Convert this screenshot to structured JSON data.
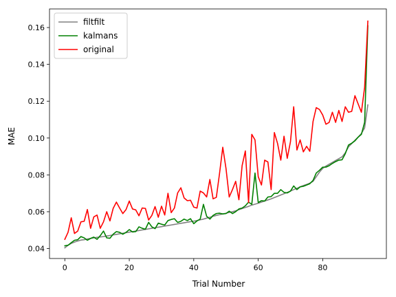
{
  "chart_data": {
    "type": "line",
    "xlabel": "Trial Number",
    "ylabel": "MAE",
    "xlim": [
      -4.75,
      99.75
    ],
    "ylim": [
      0.0346,
      0.1701
    ],
    "xticks": [
      0,
      20,
      40,
      60,
      80
    ],
    "yticks": [
      0.04,
      0.06,
      0.08,
      0.1,
      0.12,
      0.14,
      0.16
    ],
    "ytick_labels": [
      "0.04",
      "0.06",
      "0.08",
      "0.10",
      "0.12",
      "0.14",
      "0.16"
    ],
    "grid": false,
    "legend_position": "top-left",
    "series": [
      {
        "name": "filtfilt",
        "color": "#808080",
        "values": [
          0.0404,
          0.0418,
          0.0428,
          0.0435,
          0.0441,
          0.0446,
          0.0448,
          0.0452,
          0.0455,
          0.0458,
          0.0461,
          0.0463,
          0.0465,
          0.0468,
          0.0471,
          0.0474,
          0.0477,
          0.048,
          0.0483,
          0.0486,
          0.0489,
          0.0492,
          0.0495,
          0.0498,
          0.0501,
          0.0504,
          0.0507,
          0.051,
          0.0513,
          0.0516,
          0.0519,
          0.0522,
          0.0525,
          0.0528,
          0.0531,
          0.0534,
          0.0537,
          0.054,
          0.0543,
          0.0546,
          0.0549,
          0.0552,
          0.0556,
          0.056,
          0.0565,
          0.057,
          0.0575,
          0.058,
          0.0584,
          0.0588,
          0.0592,
          0.0596,
          0.06,
          0.0605,
          0.0611,
          0.0617,
          0.0623,
          0.0629,
          0.0636,
          0.0641,
          0.0646,
          0.0652,
          0.0658,
          0.0664,
          0.067,
          0.0677,
          0.0684,
          0.0691,
          0.0698,
          0.0705,
          0.0712,
          0.072,
          0.0727,
          0.0735,
          0.0742,
          0.0748,
          0.0755,
          0.0765,
          0.079,
          0.0815,
          0.0835,
          0.0848,
          0.0858,
          0.0868,
          0.0878,
          0.0888,
          0.0898,
          0.092,
          0.0952,
          0.097,
          0.0988,
          0.1005,
          0.1025,
          0.1055,
          0.118
        ]
      },
      {
        "name": "kalmans",
        "color": "#008000",
        "values": [
          0.0415,
          0.0418,
          0.0432,
          0.0445,
          0.0448,
          0.0465,
          0.0458,
          0.0445,
          0.0455,
          0.0462,
          0.045,
          0.047,
          0.0495,
          0.0458,
          0.0456,
          0.0478,
          0.0492,
          0.0488,
          0.0478,
          0.0488,
          0.0503,
          0.049,
          0.0492,
          0.0518,
          0.051,
          0.0505,
          0.0542,
          0.0518,
          0.0508,
          0.0538,
          0.0532,
          0.0528,
          0.0552,
          0.0558,
          0.0562,
          0.0542,
          0.0548,
          0.056,
          0.0552,
          0.0562,
          0.0535,
          0.055,
          0.056,
          0.064,
          0.0575,
          0.056,
          0.058,
          0.059,
          0.0592,
          0.0588,
          0.059,
          0.0603,
          0.059,
          0.06,
          0.0615,
          0.062,
          0.0632,
          0.0652,
          0.064,
          0.081,
          0.065,
          0.066,
          0.0658,
          0.068,
          0.0682,
          0.07,
          0.07,
          0.072,
          0.0705,
          0.0702,
          0.0712,
          0.074,
          0.072,
          0.0735,
          0.0738,
          0.0745,
          0.0752,
          0.077,
          0.081,
          0.0825,
          0.0842,
          0.0842,
          0.085,
          0.0862,
          0.0872,
          0.088,
          0.0882,
          0.0915,
          0.0962,
          0.0972,
          0.0985,
          0.1005,
          0.102,
          0.1085,
          0.161
        ]
      },
      {
        "name": "original",
        "color": "#ff0000",
        "values": [
          0.045,
          0.0488,
          0.0567,
          0.0482,
          0.0495,
          0.0545,
          0.0548,
          0.0612,
          0.051,
          0.0572,
          0.0582,
          0.051,
          0.0545,
          0.06,
          0.055,
          0.0618,
          0.0652,
          0.062,
          0.059,
          0.0612,
          0.0658,
          0.0615,
          0.061,
          0.0578,
          0.062,
          0.0618,
          0.0555,
          0.058,
          0.0628,
          0.057,
          0.063,
          0.0582,
          0.07,
          0.0595,
          0.062,
          0.0702,
          0.073,
          0.0675,
          0.066,
          0.0662,
          0.0625,
          0.062,
          0.0712,
          0.0702,
          0.068,
          0.0775,
          0.067,
          0.0678,
          0.0808,
          0.095,
          0.0835,
          0.068,
          0.072,
          0.0765,
          0.0665,
          0.085,
          0.093,
          0.065,
          0.102,
          0.099,
          0.079,
          0.0745,
          0.088,
          0.087,
          0.072,
          0.103,
          0.097,
          0.088,
          0.101,
          0.089,
          0.098,
          0.117,
          0.0935,
          0.099,
          0.0925,
          0.0955,
          0.0928,
          0.109,
          0.1165,
          0.1155,
          0.1125,
          0.1075,
          0.1085,
          0.114,
          0.1085,
          0.115,
          0.109,
          0.117,
          0.114,
          0.1145,
          0.123,
          0.1185,
          0.114,
          0.1275,
          0.1635
        ]
      }
    ]
  }
}
